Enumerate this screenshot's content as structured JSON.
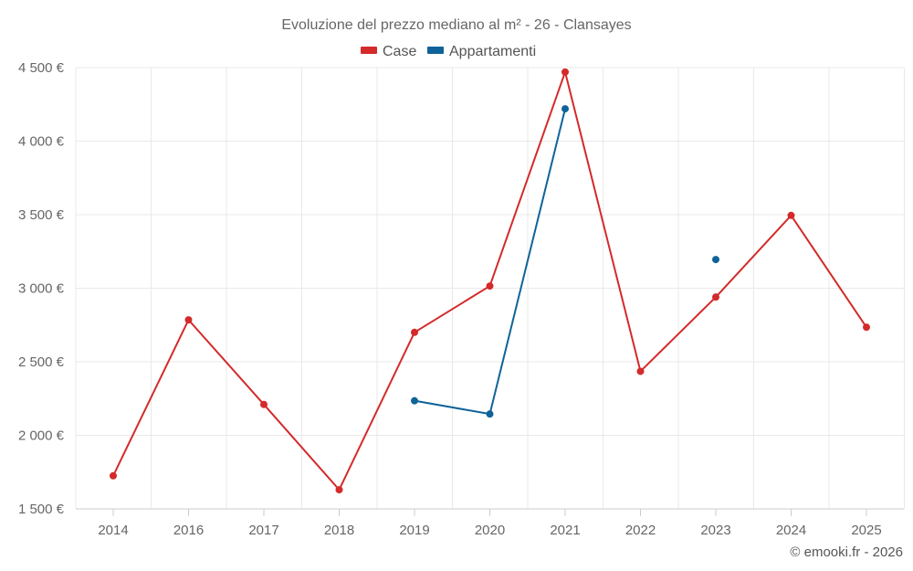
{
  "chart_data": {
    "type": "line",
    "title": "Evoluzione del prezzo mediano al m² - 26 - Clansayes",
    "categories": [
      "2014",
      "2016",
      "2017",
      "2018",
      "2019",
      "2020",
      "2021",
      "2022",
      "2023",
      "2024",
      "2025"
    ],
    "ylim": [
      1500,
      4500
    ],
    "yticks": [
      1500,
      2000,
      2500,
      3000,
      3500,
      4000,
      4500
    ],
    "ytick_labels": [
      "1 500 €",
      "2 000 €",
      "2 500 €",
      "3 000 €",
      "3 500 €",
      "4 000 €",
      "4 500 €"
    ],
    "grid": true,
    "legend_position": "top-center",
    "series": [
      {
        "name": "Case",
        "color": "#d42a2a",
        "values": [
          1725,
          2785,
          2210,
          1630,
          2700,
          3015,
          4470,
          2435,
          2940,
          3495,
          2735
        ]
      },
      {
        "name": "Appartamenti",
        "color": "#0f6399",
        "values": [
          null,
          null,
          null,
          null,
          2235,
          2145,
          4220,
          null,
          3195,
          null,
          null
        ]
      }
    ],
    "credit": "© emooki.fr - 2026"
  }
}
